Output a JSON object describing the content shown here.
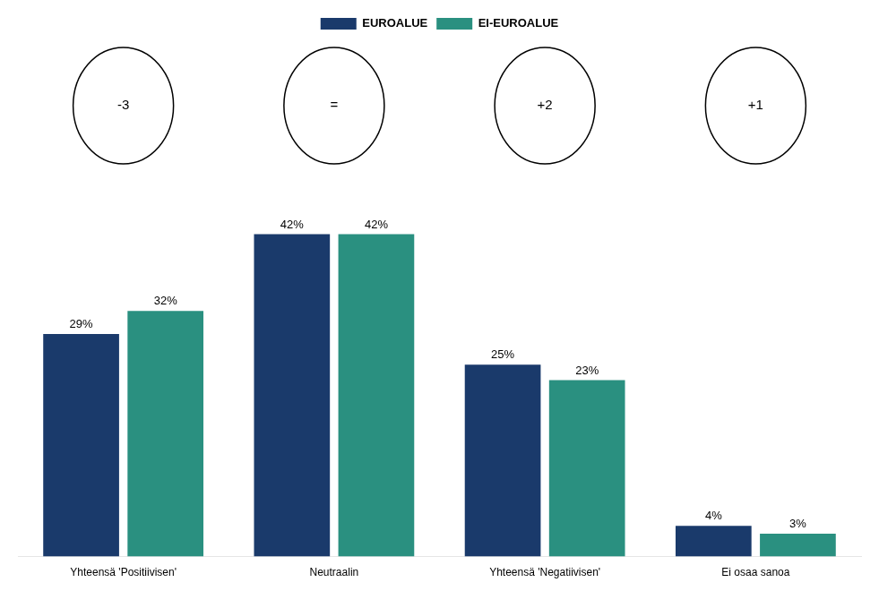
{
  "chart_data": {
    "type": "bar",
    "categories": [
      "Yhteensä 'Positiivisen'",
      "Neutraalin",
      "Yhteensä 'Negatiivisen'",
      "Ei osaa sanoa"
    ],
    "series": [
      {
        "name": "EUROALUE",
        "color": "#1a3a6b",
        "values": [
          29,
          42,
          25,
          4
        ],
        "value_labels": [
          "29%",
          "42%",
          "25%",
          "4%"
        ]
      },
      {
        "name": "EI-EUROALUE",
        "color": "#2a9080",
        "values": [
          32,
          42,
          23,
          3
        ],
        "value_labels": [
          "32%",
          "42%",
          "23%",
          "3%"
        ]
      }
    ],
    "annotations": [
      {
        "text": "-3",
        "x": "Yhteensä 'Positiivisen'"
      },
      {
        "text": "=",
        "x": "Neutraalin"
      },
      {
        "text": "+2",
        "x": "Yhteensä 'Negatiivisen'"
      },
      {
        "text": "+1",
        "x": "Ei osaa sanoa"
      }
    ],
    "ylim": [
      0,
      50
    ],
    "grid": false,
    "legend": "top",
    "data_labels": true,
    "tick_labels": "x"
  }
}
